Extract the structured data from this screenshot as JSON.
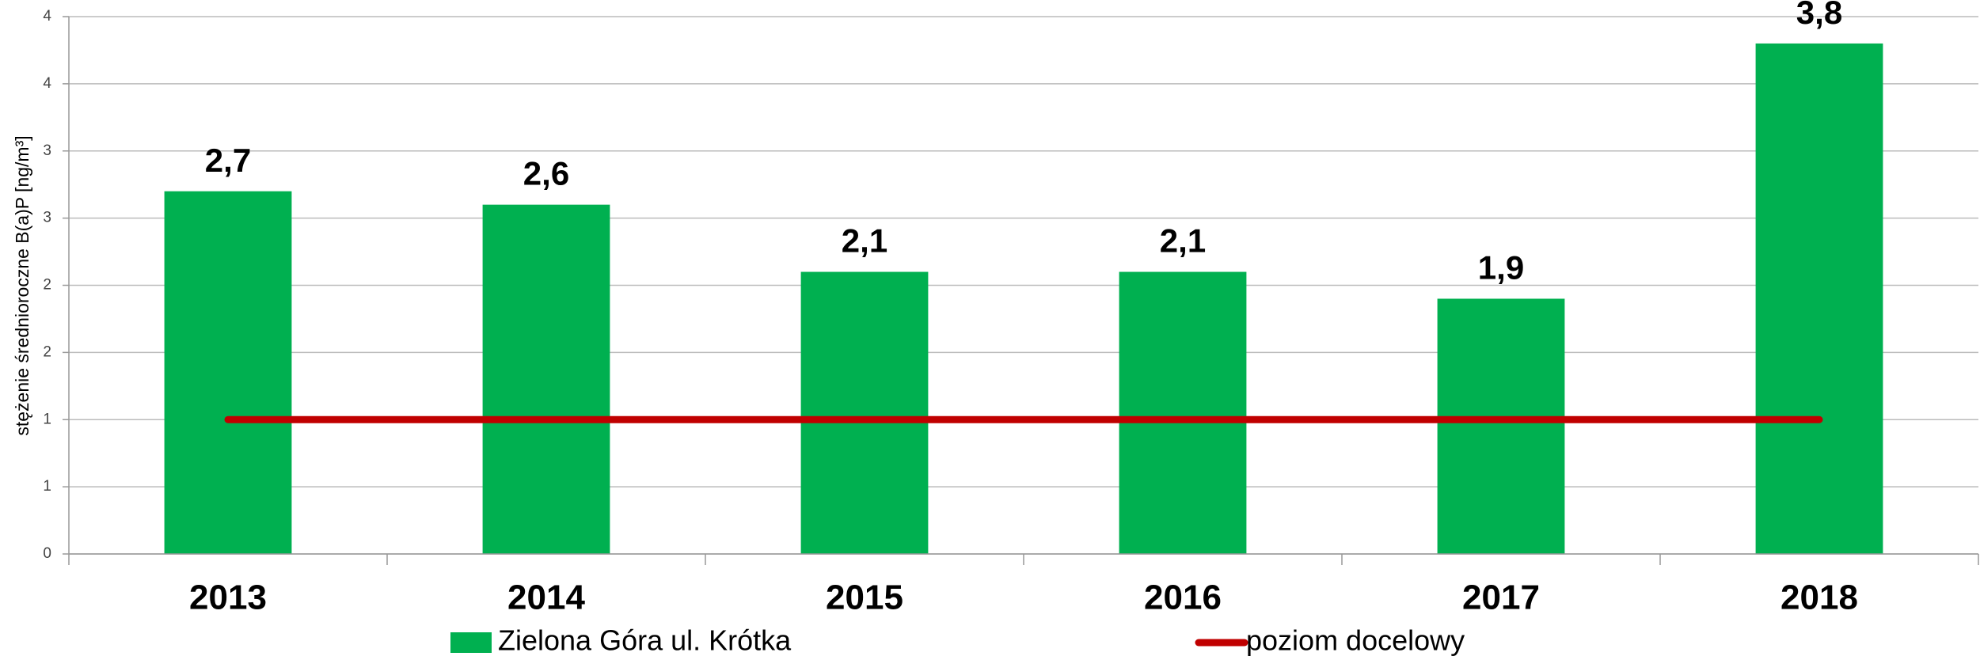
{
  "chart_data": {
    "type": "bar",
    "y_label": "stężenie średnioroczne B(a)P [ng/m³]",
    "categories": [
      "2013",
      "2014",
      "2015",
      "2016",
      "2017",
      "2018"
    ],
    "series": [
      {
        "name": "Zielona Góra ul. Krótka",
        "type": "bar",
        "color": "#00b050",
        "values": [
          2.7,
          2.6,
          2.1,
          2.1,
          1.9,
          3.8
        ],
        "value_labels": [
          "2,7",
          "2,6",
          "2,1",
          "2,1",
          "1,9",
          "3,8"
        ]
      },
      {
        "name": "poziom docelowy",
        "type": "line",
        "color": "#c00000",
        "values": [
          1,
          1,
          1,
          1,
          1,
          1
        ]
      }
    ],
    "ylim": [
      0,
      4
    ],
    "yticks": [
      0,
      {
        "value": 0.5,
        "label": "1"
      },
      1,
      {
        "value": 1.5,
        "label": "2"
      },
      2,
      {
        "value": 2.5,
        "label": "3"
      },
      3,
      {
        "value": 3.5,
        "label": "4"
      },
      4
    ],
    "grid": true
  }
}
